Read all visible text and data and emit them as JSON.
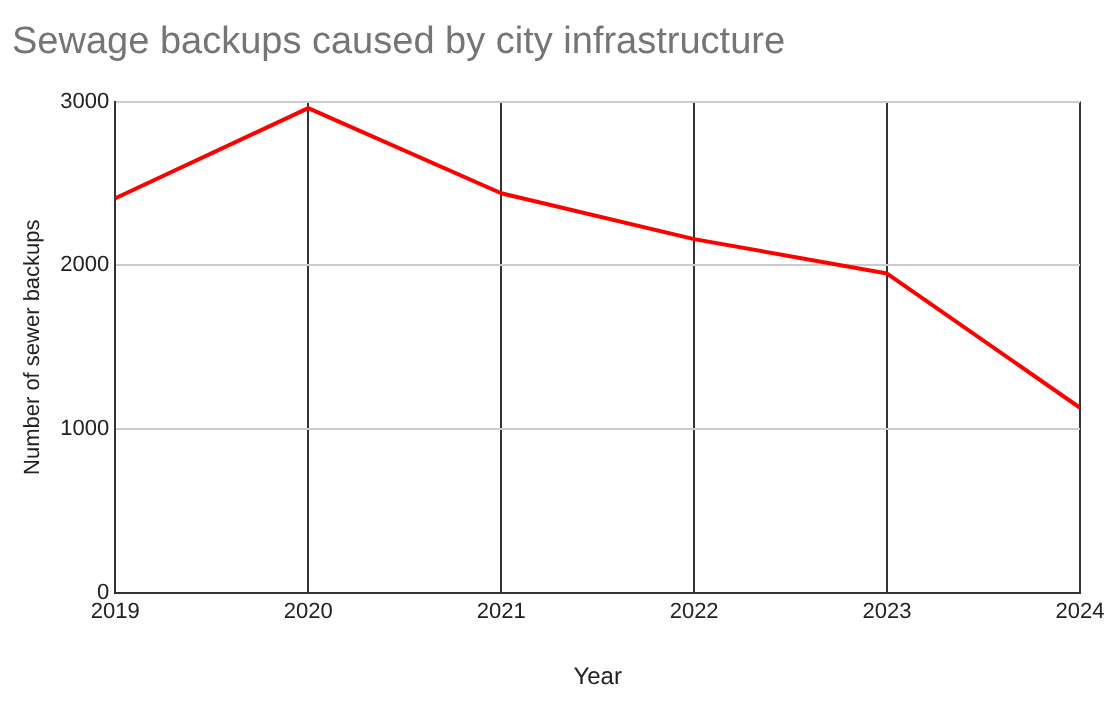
{
  "chart_data": {
    "type": "line",
    "title": "Sewage backups caused by city infrastructure",
    "xlabel": "Year",
    "ylabel": "Number of sewer backups",
    "x": [
      2019,
      2020,
      2021,
      2022,
      2023,
      2024
    ],
    "series": [
      {
        "color": "#ff0000",
        "values": [
          2410,
          2960,
          2440,
          2160,
          1950,
          1130
        ]
      }
    ],
    "xlim": [
      2019,
      2024
    ],
    "xticks": [
      2019,
      2020,
      2021,
      2022,
      2023,
      2024
    ],
    "ylim": [
      0,
      3000
    ],
    "yticks": [
      0,
      1000,
      2000,
      3000
    ],
    "grid": true,
    "legend": false,
    "marker": "none",
    "line_style": "solid"
  }
}
